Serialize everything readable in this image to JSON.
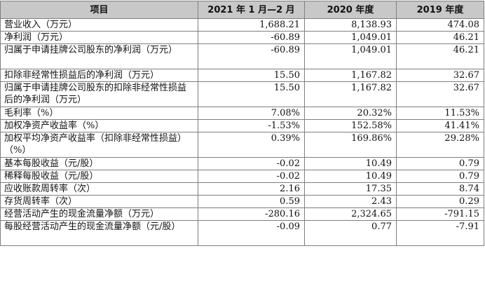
{
  "table": {
    "headers": [
      "项目",
      "2021 年 1 月—2 月",
      "2020 年度",
      "2019 年度"
    ],
    "rows": [
      {
        "label": "营业收入（万元）",
        "v2021": "1,688.21",
        "v2020": "8,138.93",
        "v2019": "474.08",
        "lines": 1
      },
      {
        "label": "净利润（万元）",
        "v2021": "-60.89",
        "v2020": "1,049.01",
        "v2019": "46.21",
        "lines": 1
      },
      {
        "label": "归属于申请挂牌公司股东的净利润（万元）",
        "v2021": "-60.89",
        "v2020": "1,049.01",
        "v2019": "46.21",
        "lines": 2
      },
      {
        "label": "扣除非经常性损益后的净利润（万元）",
        "v2021": "15.50",
        "v2020": "1,167.82",
        "v2019": "32.67",
        "lines": 1
      },
      {
        "label": "归属于申请挂牌公司股东的扣除非经常性损益后的净利润（万元）",
        "v2021": "15.50",
        "v2020": "1,167.82",
        "v2019": "32.67",
        "lines": 2
      },
      {
        "label": "毛利率（%）",
        "v2021": "7.08%",
        "v2020": "20.32%",
        "v2019": "11.53%",
        "lines": 1
      },
      {
        "label": "加权净资产收益率（%）",
        "v2021": "-1.53%",
        "v2020": "152.58%",
        "v2019": "41.41%",
        "lines": 1
      },
      {
        "label": "加权平均净资产收益率（扣除非经常性损益）（%）",
        "v2021": "0.39%",
        "v2020": "169.86%",
        "v2019": "29.28%",
        "lines": 2
      },
      {
        "label": "基本每股收益（元/股）",
        "v2021": "-0.02",
        "v2020": "10.49",
        "v2019": "0.79",
        "lines": 1
      },
      {
        "label": "稀释每股收益（元/股）",
        "v2021": "-0.02",
        "v2020": "10.49",
        "v2019": "0.79",
        "lines": 1
      },
      {
        "label": "应收账款周转率（次）",
        "v2021": "2.16",
        "v2020": "17.35",
        "v2019": "8.74",
        "lines": 1
      },
      {
        "label": "存货周转率（次）",
        "v2021": "0.59",
        "v2020": "2.43",
        "v2019": "0.29",
        "lines": 1
      },
      {
        "label": "经营活动产生的现金流量净额（万元）",
        "v2021": "-280.16",
        "v2020": "2,324.65",
        "v2019": "-791.15",
        "lines": 1
      },
      {
        "label": "每股经营活动产生的现金流量净额（元/股）",
        "v2021": "-0.09",
        "v2020": "0.77",
        "v2019": "-7.91",
        "lines": 2
      }
    ]
  }
}
